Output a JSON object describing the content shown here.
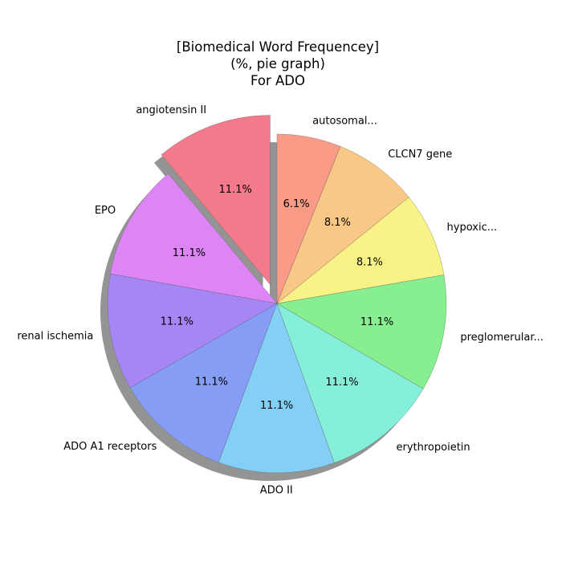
{
  "chart_data": {
    "type": "pie",
    "title_lines": [
      "[Biomedical Word Frequencey]",
      "(%, pie graph)",
      "For ADO"
    ],
    "start_angle_deg": 90,
    "direction": "counterclockwise",
    "shadow": true,
    "slices": [
      {
        "label": "angiotensin II",
        "value": 11.1,
        "pct": "11.1%",
        "color": "#f27a8a",
        "explode": true
      },
      {
        "label": "EPO",
        "value": 11.1,
        "pct": "11.1%",
        "color": "#dd85f5"
      },
      {
        "label": "renal ischemia",
        "value": 11.1,
        "pct": "11.1%",
        "color": "#a685f5"
      },
      {
        "label": "ADO A1 receptors",
        "value": 11.1,
        "pct": "11.1%",
        "color": "#869df6"
      },
      {
        "label": "ADO II",
        "value": 11.1,
        "pct": "11.1%",
        "color": "#84cff6"
      },
      {
        "label": "erythropoietin",
        "value": 11.1,
        "pct": "11.1%",
        "color": "#85efd9"
      },
      {
        "label": "preglomerular...",
        "value": 11.1,
        "pct": "11.1%",
        "color": "#87ef8f"
      },
      {
        "label": "hypoxic...",
        "value": 8.1,
        "pct": "8.1%",
        "color": "#f9f387"
      },
      {
        "label": "CLCN7 gene",
        "value": 8.1,
        "pct": "8.1%",
        "color": "#f9c886"
      },
      {
        "label": "autosomal...",
        "value": 6.1,
        "pct": "6.1%",
        "color": "#f99b87"
      }
    ]
  }
}
